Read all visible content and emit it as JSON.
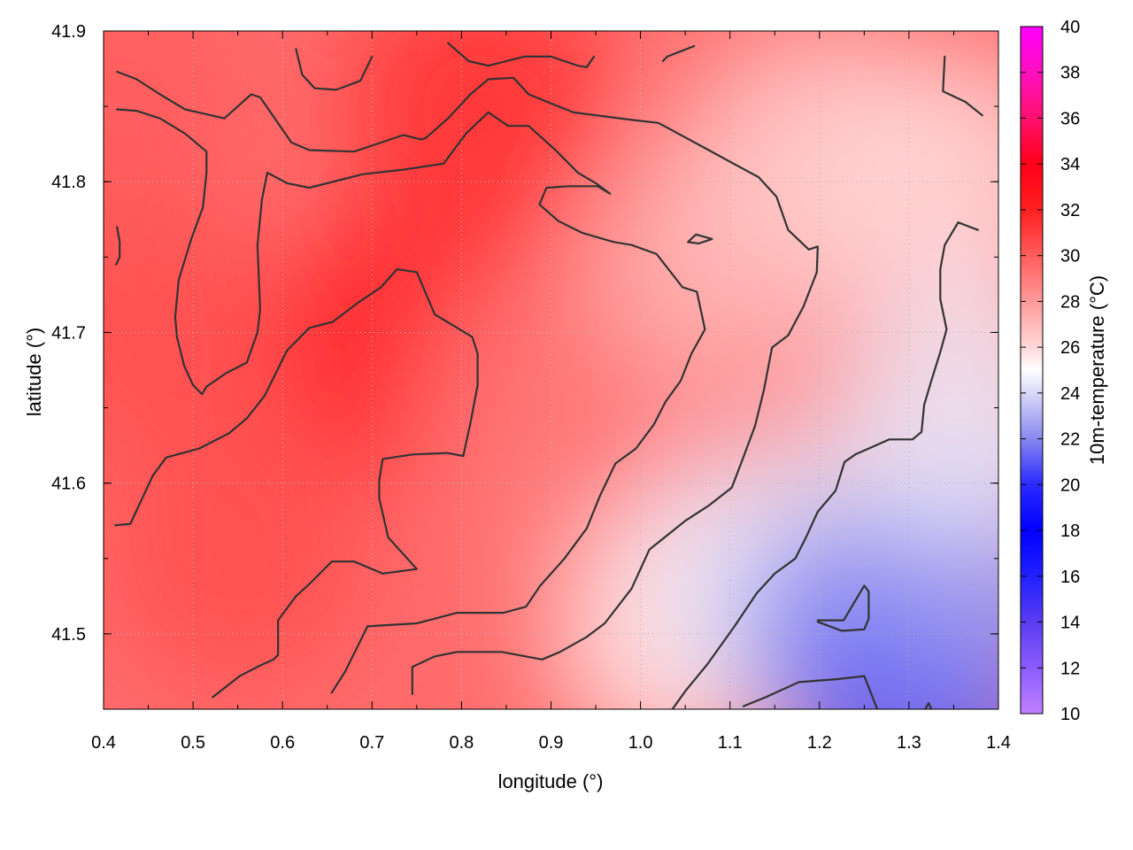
{
  "chart_data": {
    "type": "heatmap",
    "title": "",
    "xlabel": "longitude (°)",
    "ylabel": "latitude (°)",
    "colorbar_label": "10m-temperature (°C)",
    "xlim": [
      0.4,
      1.4
    ],
    "ylim": [
      41.45,
      41.9
    ],
    "clim": [
      10,
      40
    ],
    "x_ticks": [
      {
        "value": 0.4,
        "label": "0.4"
      },
      {
        "value": 0.5,
        "label": "0.5"
      },
      {
        "value": 0.6,
        "label": "0.6"
      },
      {
        "value": 0.7,
        "label": "0.7"
      },
      {
        "value": 0.8,
        "label": "0.8"
      },
      {
        "value": 0.9,
        "label": "0.9"
      },
      {
        "value": 1.0,
        "label": "1.0"
      },
      {
        "value": 1.1,
        "label": "1.1"
      },
      {
        "value": 1.2,
        "label": "1.2"
      },
      {
        "value": 1.3,
        "label": "1.3"
      },
      {
        "value": 1.4,
        "label": "1.4"
      }
    ],
    "y_ticks": [
      {
        "value": 41.5,
        "label": "41.5"
      },
      {
        "value": 41.6,
        "label": "41.6"
      },
      {
        "value": 41.7,
        "label": "41.7"
      },
      {
        "value": 41.8,
        "label": "41.8"
      },
      {
        "value": 41.9,
        "label": "41.9"
      }
    ],
    "colorbar_ticks": [
      {
        "value": 10,
        "label": "10"
      },
      {
        "value": 12,
        "label": "12"
      },
      {
        "value": 14,
        "label": "14"
      },
      {
        "value": 16,
        "label": "16"
      },
      {
        "value": 18,
        "label": "18"
      },
      {
        "value": 20,
        "label": "20"
      },
      {
        "value": 22,
        "label": "22"
      },
      {
        "value": 24,
        "label": "24"
      },
      {
        "value": 26,
        "label": "26"
      },
      {
        "value": 28,
        "label": "28"
      },
      {
        "value": 30,
        "label": "30"
      },
      {
        "value": 32,
        "label": "32"
      },
      {
        "value": 34,
        "label": "34"
      },
      {
        "value": 36,
        "label": "36"
      },
      {
        "value": 38,
        "label": "38"
      },
      {
        "value": 40,
        "label": "40"
      }
    ],
    "colormap": [
      {
        "value": 10,
        "color": "#c080ff"
      },
      {
        "value": 12,
        "color": "#8c5cff"
      },
      {
        "value": 14,
        "color": "#5a3cf0"
      },
      {
        "value": 16,
        "color": "#2020ff"
      },
      {
        "value": 18,
        "color": "#0000ff"
      },
      {
        "value": 20,
        "color": "#2a2aff"
      },
      {
        "value": 22,
        "color": "#8888f0"
      },
      {
        "value": 24,
        "color": "#d8d8f8"
      },
      {
        "value": 25,
        "color": "#ffffff"
      },
      {
        "value": 26,
        "color": "#ffd8d8"
      },
      {
        "value": 28,
        "color": "#ff9a9a"
      },
      {
        "value": 30,
        "color": "#ff5c5c"
      },
      {
        "value": 32,
        "color": "#ff2020"
      },
      {
        "value": 34,
        "color": "#ff0018"
      },
      {
        "value": 36,
        "color": "#ff1070"
      },
      {
        "value": 38,
        "color": "#ff10c0"
      },
      {
        "value": 40,
        "color": "#ff00ff"
      }
    ],
    "temperature_regions": [
      {
        "x": 0.74,
        "y": 41.69,
        "temperature": 32.5
      },
      {
        "x": 0.82,
        "y": 41.85,
        "temperature": 31.5
      },
      {
        "x": 0.45,
        "y": 41.7,
        "temperature": 30.5
      },
      {
        "x": 0.55,
        "y": 41.55,
        "temperature": 30.5
      },
      {
        "x": 0.42,
        "y": 41.85,
        "temperature": 30.0
      },
      {
        "x": 0.9,
        "y": 41.65,
        "temperature": 29.0
      },
      {
        "x": 1.1,
        "y": 41.75,
        "temperature": 27.0
      },
      {
        "x": 1.2,
        "y": 41.82,
        "temperature": 26.5
      },
      {
        "x": 1.35,
        "y": 41.8,
        "temperature": 26.0
      },
      {
        "x": 1.05,
        "y": 41.5,
        "temperature": 25.5
      },
      {
        "x": 1.15,
        "y": 41.55,
        "temperature": 24.5
      },
      {
        "x": 1.25,
        "y": 41.5,
        "temperature": 22.0
      },
      {
        "x": 1.32,
        "y": 41.46,
        "temperature": 21.0
      },
      {
        "x": 1.37,
        "y": 41.55,
        "temperature": 22.5
      },
      {
        "x": 1.36,
        "y": 41.65,
        "temperature": 24.5
      }
    ],
    "contours": [
      {
        "points": [
          [
            0.415,
            41.873
          ],
          [
            0.437,
            41.868
          ],
          [
            0.463,
            41.858
          ],
          [
            0.491,
            41.848
          ],
          [
            0.535,
            41.842
          ],
          [
            0.55,
            41.85
          ],
          [
            0.565,
            41.858
          ],
          [
            0.575,
            41.856
          ],
          [
            0.61,
            41.826
          ],
          [
            0.63,
            41.821
          ],
          [
            0.68,
            41.82
          ],
          [
            0.71,
            41.826
          ],
          [
            0.735,
            41.831
          ],
          [
            0.755,
            41.828
          ],
          [
            0.76,
            41.829
          ],
          [
            0.785,
            41.842
          ],
          [
            0.81,
            41.858
          ],
          [
            0.83,
            41.868
          ],
          [
            0.858,
            41.869
          ],
          [
            0.875,
            41.858
          ],
          [
            0.925,
            41.846
          ],
          [
            0.99,
            41.841
          ],
          [
            1.02,
            41.839
          ],
          [
            1.07,
            41.823
          ],
          [
            1.107,
            41.811
          ],
          [
            1.132,
            41.803
          ],
          [
            1.152,
            41.79
          ],
          [
            1.165,
            41.768
          ],
          [
            1.188,
            41.755
          ],
          [
            1.198,
            41.757
          ],
          [
            1.197,
            41.74
          ],
          [
            1.182,
            41.717
          ],
          [
            1.165,
            41.698
          ],
          [
            1.147,
            41.69
          ],
          [
            1.138,
            41.662
          ],
          [
            1.128,
            41.638
          ],
          [
            1.113,
            41.614
          ],
          [
            1.102,
            41.597
          ],
          [
            1.076,
            41.585
          ],
          [
            1.05,
            41.575
          ],
          [
            1.01,
            41.556
          ],
          [
            0.99,
            41.53
          ],
          [
            0.96,
            41.507
          ],
          [
            0.94,
            41.498
          ],
          [
            0.91,
            41.488
          ],
          [
            0.89,
            41.483
          ],
          [
            0.845,
            41.488
          ],
          [
            0.795,
            41.488
          ],
          [
            0.77,
            41.485
          ],
          [
            0.745,
            41.478
          ],
          [
            0.745,
            41.46
          ]
        ]
      },
      {
        "points": [
          [
            0.415,
            41.848
          ],
          [
            0.437,
            41.847
          ],
          [
            0.463,
            41.842
          ],
          [
            0.491,
            41.832
          ],
          [
            0.515,
            41.82
          ],
          [
            0.515,
            41.806
          ],
          [
            0.511,
            41.783
          ],
          [
            0.498,
            41.762
          ],
          [
            0.484,
            41.735
          ],
          [
            0.48,
            41.71
          ],
          [
            0.482,
            41.697
          ],
          [
            0.49,
            41.678
          ],
          [
            0.5,
            41.665
          ],
          [
            0.51,
            41.659
          ],
          [
            0.515,
            41.664
          ],
          [
            0.537,
            41.673
          ],
          [
            0.56,
            41.68
          ],
          [
            0.572,
            41.7
          ],
          [
            0.575,
            41.715
          ],
          [
            0.572,
            41.758
          ],
          [
            0.577,
            41.788
          ],
          [
            0.583,
            41.806
          ],
          [
            0.605,
            41.799
          ],
          [
            0.63,
            41.796
          ],
          [
            0.69,
            41.805
          ],
          [
            0.735,
            41.808
          ],
          [
            0.78,
            41.812
          ],
          [
            0.805,
            41.832
          ],
          [
            0.83,
            41.846
          ],
          [
            0.852,
            41.837
          ],
          [
            0.875,
            41.837
          ],
          [
            0.905,
            41.821
          ],
          [
            0.93,
            41.806
          ],
          [
            0.95,
            41.799
          ],
          [
            0.966,
            41.792
          ],
          [
            0.952,
            41.797
          ],
          [
            0.92,
            41.797
          ],
          [
            0.895,
            41.796
          ],
          [
            0.887,
            41.785
          ],
          [
            0.908,
            41.774
          ],
          [
            0.935,
            41.766
          ],
          [
            0.97,
            41.76
          ],
          [
            0.99,
            41.758
          ],
          [
            1.018,
            41.752
          ],
          [
            1.047,
            41.73
          ],
          [
            1.063,
            41.727
          ],
          [
            1.072,
            41.702
          ],
          [
            1.057,
            41.686
          ],
          [
            1.045,
            41.668
          ],
          [
            1.028,
            41.654
          ],
          [
            1.015,
            41.639
          ],
          [
            0.995,
            41.623
          ],
          [
            0.972,
            41.613
          ],
          [
            0.955,
            41.592
          ],
          [
            0.94,
            41.57
          ],
          [
            0.915,
            41.55
          ],
          [
            0.888,
            41.532
          ],
          [
            0.872,
            41.518
          ],
          [
            0.847,
            41.514
          ],
          [
            0.795,
            41.514
          ],
          [
            0.75,
            41.507
          ],
          [
            0.695,
            41.505
          ],
          [
            0.675,
            41.481
          ],
          [
            0.67,
            41.475
          ],
          [
            0.655,
            41.461
          ]
        ]
      },
      {
        "points": [
          [
            0.413,
            41.572
          ],
          [
            0.43,
            41.573
          ],
          [
            0.455,
            41.605
          ],
          [
            0.47,
            41.617
          ],
          [
            0.507,
            41.623
          ],
          [
            0.54,
            41.633
          ],
          [
            0.56,
            41.643
          ],
          [
            0.58,
            41.658
          ],
          [
            0.605,
            41.688
          ],
          [
            0.63,
            41.703
          ],
          [
            0.656,
            41.707
          ],
          [
            0.685,
            41.72
          ],
          [
            0.71,
            41.73
          ],
          [
            0.728,
            41.742
          ],
          [
            0.75,
            41.74
          ],
          [
            0.77,
            41.712
          ],
          [
            0.812,
            41.697
          ],
          [
            0.818,
            41.686
          ],
          [
            0.818,
            41.665
          ],
          [
            0.81,
            41.64
          ],
          [
            0.802,
            41.618
          ],
          [
            0.784,
            41.62
          ],
          [
            0.745,
            41.619
          ],
          [
            0.712,
            41.616
          ],
          [
            0.708,
            41.602
          ],
          [
            0.708,
            41.59
          ],
          [
            0.718,
            41.564
          ],
          [
            0.75,
            41.543
          ],
          [
            0.712,
            41.54
          ],
          [
            0.68,
            41.548
          ],
          [
            0.655,
            41.548
          ],
          [
            0.63,
            41.533
          ],
          [
            0.615,
            41.525
          ],
          [
            0.595,
            41.509
          ],
          [
            0.595,
            41.486
          ],
          [
            0.59,
            41.483
          ],
          [
            0.575,
            41.479
          ],
          [
            0.552,
            41.472
          ],
          [
            0.522,
            41.458
          ]
        ]
      },
      {
        "points": [
          [
            0.615,
            41.888
          ],
          [
            0.622,
            41.871
          ],
          [
            0.636,
            41.862
          ],
          [
            0.66,
            41.861
          ],
          [
            0.687,
            41.867
          ],
          [
            0.7,
            41.883
          ]
        ]
      },
      {
        "points": [
          [
            0.785,
            41.892
          ],
          [
            0.808,
            41.88
          ],
          [
            0.83,
            41.877
          ],
          [
            0.87,
            41.883
          ],
          [
            0.9,
            41.883
          ],
          [
            0.93,
            41.877
          ],
          [
            0.94,
            41.876
          ],
          [
            0.948,
            41.883
          ]
        ]
      },
      {
        "points": [
          [
            1.025,
            41.88
          ],
          [
            1.03,
            41.883
          ],
          [
            1.06,
            41.89
          ]
        ]
      },
      {
        "points": [
          [
            1.34,
            41.883
          ],
          [
            1.338,
            41.86
          ],
          [
            1.363,
            41.853
          ],
          [
            1.382,
            41.844
          ]
        ]
      },
      {
        "points": [
          [
            0.415,
            41.77
          ],
          [
            0.418,
            41.76
          ],
          [
            0.418,
            41.75
          ],
          [
            0.414,
            41.745
          ]
        ]
      },
      {
        "points": [
          [
            1.053,
            41.76
          ],
          [
            1.062,
            41.765
          ],
          [
            1.08,
            41.762
          ],
          [
            1.065,
            41.759
          ],
          [
            1.053,
            41.76
          ]
        ]
      },
      {
        "points": [
          [
            1.377,
            41.768
          ],
          [
            1.355,
            41.773
          ],
          [
            1.34,
            41.758
          ],
          [
            1.335,
            41.742
          ],
          [
            1.335,
            41.722
          ],
          [
            1.342,
            41.702
          ],
          [
            1.335,
            41.687
          ],
          [
            1.325,
            41.668
          ],
          [
            1.317,
            41.652
          ],
          [
            1.314,
            41.634
          ],
          [
            1.304,
            41.629
          ],
          [
            1.278,
            41.629
          ],
          [
            1.24,
            41.619
          ],
          [
            1.228,
            41.614
          ],
          [
            1.218,
            41.595
          ],
          [
            1.198,
            41.581
          ],
          [
            1.185,
            41.564
          ],
          [
            1.173,
            41.55
          ],
          [
            1.15,
            41.54
          ],
          [
            1.13,
            41.527
          ],
          [
            1.105,
            41.505
          ],
          [
            1.075,
            41.48
          ],
          [
            1.05,
            41.462
          ],
          [
            1.032,
            41.447
          ]
        ]
      },
      {
        "points": [
          [
            1.198,
            41.509
          ],
          [
            1.227,
            41.509
          ],
          [
            1.25,
            41.532
          ],
          [
            1.255,
            41.528
          ],
          [
            1.255,
            41.51
          ],
          [
            1.25,
            41.503
          ],
          [
            1.225,
            41.502
          ],
          [
            1.198,
            41.508
          ]
        ]
      },
      {
        "points": [
          [
            1.115,
            41.452
          ],
          [
            1.14,
            41.458
          ],
          [
            1.177,
            41.468
          ],
          [
            1.22,
            41.47
          ],
          [
            1.25,
            41.472
          ],
          [
            1.268,
            41.445
          ]
        ]
      },
      {
        "points": [
          [
            1.318,
            41.45
          ],
          [
            1.322,
            41.454
          ],
          [
            1.325,
            41.45
          ]
        ]
      }
    ]
  }
}
